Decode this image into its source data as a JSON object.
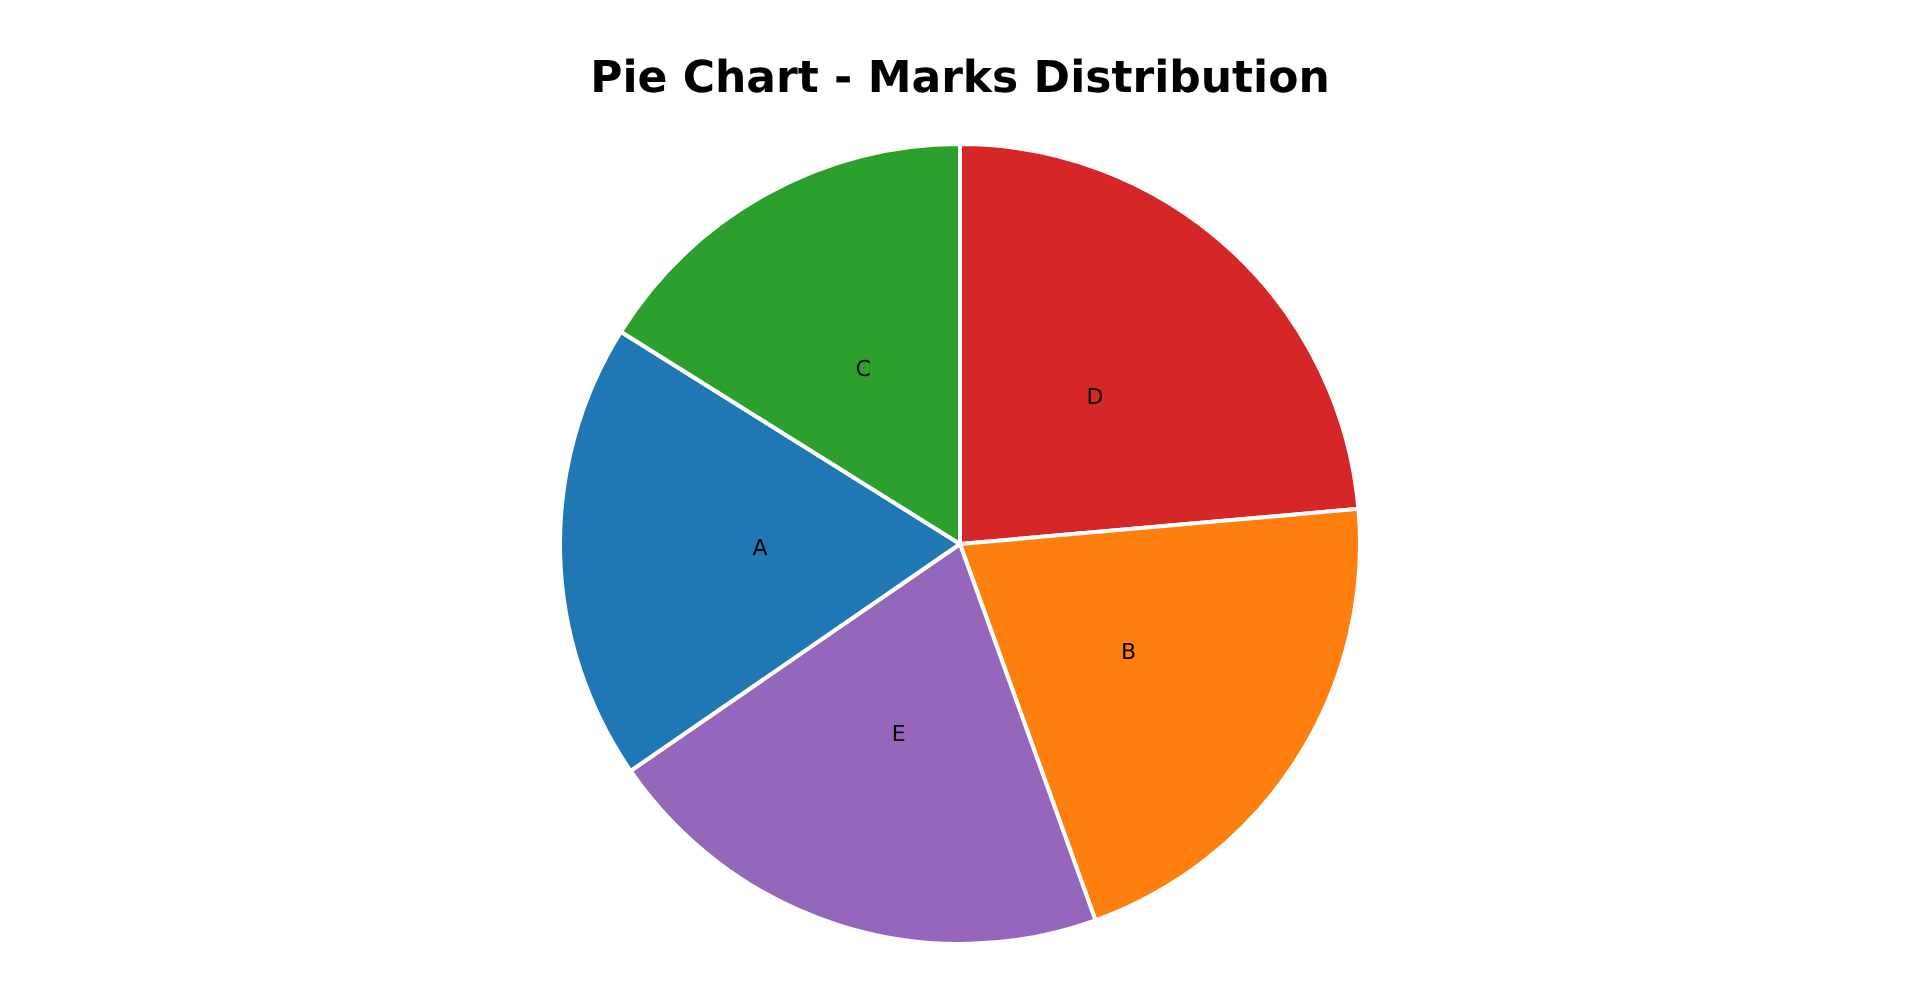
{
  "chart_data": {
    "type": "pie",
    "title": "Pie Chart - Marks Distribution",
    "categories": [
      "D",
      "B",
      "E",
      "A",
      "C"
    ],
    "values": [
      23.6,
      20.9,
      20.9,
      18.5,
      16.1
    ],
    "colors": [
      "#d62728",
      "#ff7f0e",
      "#9467bd",
      "#1f77b4",
      "#2ca02c"
    ],
    "legend": false
  }
}
